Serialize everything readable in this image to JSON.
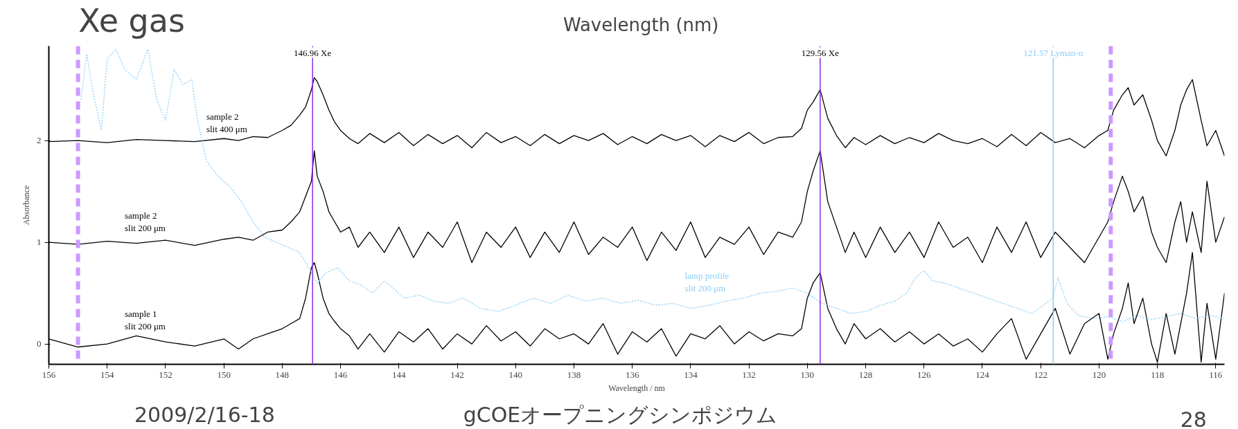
{
  "chart_data": {
    "type": "line",
    "title": "Xe gas",
    "xlabel": "Wavelength / nm",
    "ylabel": "Absorbance",
    "annotations": [
      "Wavelength (nm)",
      "2009/2/16-18",
      "gCOEオープニングシンポジウム",
      "28"
    ],
    "x": [
      156,
      155,
      154,
      153,
      152,
      151,
      150,
      149.5,
      149,
      148.5,
      148,
      147.7,
      147.4,
      147.2,
      147,
      146.9,
      146.8,
      146.6,
      146.4,
      146.2,
      146,
      145.7,
      145.4,
      145,
      144.5,
      144,
      143.5,
      143,
      142.5,
      142,
      141.5,
      141,
      140.5,
      140,
      139.5,
      139,
      138.5,
      138,
      137.5,
      137,
      136.5,
      136,
      135.5,
      135,
      134.5,
      134,
      133.5,
      133,
      132.5,
      132,
      131.5,
      131,
      130.5,
      130.2,
      130,
      129.8,
      129.56,
      129.3,
      129,
      128.7,
      128.4,
      128,
      127.5,
      127,
      126.5,
      126,
      125.5,
      125,
      124.5,
      124,
      123.5,
      123,
      122.5,
      122,
      121.5,
      121,
      120.5,
      120,
      119.7,
      119.5,
      119.2,
      119,
      118.8,
      118.5,
      118.2,
      118,
      117.7,
      117.4,
      117.2,
      117,
      116.8,
      116.5,
      116.3,
      116,
      115.7
    ],
    "series": [
      {
        "name": "sample 2\nslit 400 μm",
        "color": "#000000",
        "values": [
          1.99,
          2.0,
          1.98,
          2.01,
          2.0,
          1.99,
          2.02,
          2.0,
          2.04,
          2.03,
          2.1,
          2.15,
          2.25,
          2.33,
          2.5,
          2.62,
          2.58,
          2.45,
          2.3,
          2.18,
          2.1,
          2.02,
          1.97,
          2.07,
          1.98,
          2.08,
          1.95,
          2.06,
          1.97,
          2.05,
          1.93,
          2.08,
          1.98,
          2.04,
          1.95,
          2.06,
          1.97,
          2.05,
          2.0,
          2.07,
          1.96,
          2.04,
          1.97,
          2.06,
          2.0,
          2.05,
          1.94,
          2.05,
          1.99,
          2.08,
          1.97,
          2.03,
          2.04,
          2.12,
          2.3,
          2.38,
          2.5,
          2.22,
          2.05,
          1.93,
          2.03,
          1.96,
          2.05,
          1.97,
          2.03,
          1.98,
          2.07,
          2.0,
          1.97,
          2.02,
          1.94,
          2.06,
          1.95,
          2.08,
          1.98,
          2.02,
          1.93,
          2.05,
          2.1,
          2.3,
          2.45,
          2.52,
          2.35,
          2.45,
          2.2,
          2.0,
          1.85,
          2.1,
          2.35,
          2.5,
          2.6,
          2.2,
          1.95,
          2.1,
          1.85
        ]
      },
      {
        "name": "sample 2\nslit 200 μm",
        "color": "#000000",
        "values": [
          1.0,
          0.98,
          1.01,
          0.99,
          1.02,
          0.97,
          1.03,
          1.05,
          1.02,
          1.1,
          1.12,
          1.2,
          1.3,
          1.45,
          1.6,
          1.9,
          1.65,
          1.5,
          1.3,
          1.2,
          1.1,
          1.15,
          0.95,
          1.1,
          0.9,
          1.15,
          0.85,
          1.1,
          0.95,
          1.2,
          0.8,
          1.1,
          0.95,
          1.15,
          0.85,
          1.1,
          0.9,
          1.2,
          0.88,
          1.05,
          0.95,
          1.15,
          0.82,
          1.1,
          0.92,
          1.2,
          0.85,
          1.05,
          0.98,
          1.15,
          0.88,
          1.1,
          1.05,
          1.2,
          1.5,
          1.7,
          1.9,
          1.4,
          1.15,
          0.9,
          1.1,
          0.85,
          1.15,
          0.9,
          1.1,
          0.85,
          1.2,
          0.95,
          1.05,
          0.8,
          1.15,
          0.9,
          1.2,
          0.85,
          1.1,
          0.95,
          0.8,
          1.05,
          1.2,
          1.4,
          1.65,
          1.5,
          1.3,
          1.45,
          1.1,
          0.95,
          0.8,
          1.2,
          1.4,
          1.0,
          1.3,
          0.9,
          1.6,
          1.0,
          1.25
        ]
      },
      {
        "name": "sample 1\nslit 200 μm",
        "color": "#000000",
        "values": [
          0.05,
          -0.03,
          0.0,
          0.08,
          0.02,
          -0.02,
          0.05,
          -0.05,
          0.05,
          0.1,
          0.15,
          0.2,
          0.25,
          0.45,
          0.75,
          0.8,
          0.7,
          0.45,
          0.3,
          0.22,
          0.15,
          0.08,
          -0.05,
          0.1,
          -0.08,
          0.12,
          0.02,
          0.15,
          -0.05,
          0.1,
          0.0,
          0.18,
          0.03,
          0.12,
          -0.02,
          0.15,
          0.05,
          0.1,
          0.0,
          0.2,
          -0.1,
          0.12,
          0.02,
          0.15,
          -0.12,
          0.1,
          0.05,
          0.18,
          0.0,
          0.12,
          0.03,
          0.1,
          0.08,
          0.15,
          0.45,
          0.6,
          0.7,
          0.35,
          0.15,
          0.0,
          0.2,
          0.05,
          0.15,
          0.02,
          0.12,
          0.0,
          0.1,
          -0.02,
          0.05,
          -0.08,
          0.1,
          0.25,
          -0.15,
          0.1,
          0.35,
          -0.1,
          0.2,
          0.3,
          -0.15,
          0.1,
          0.35,
          0.6,
          0.2,
          0.45,
          0.0,
          -0.18,
          0.3,
          -0.1,
          0.2,
          0.5,
          0.9,
          -0.18,
          0.4,
          -0.15,
          0.5
        ]
      },
      {
        "name": "lamp profile\nslit 200 μm",
        "color": "#87cefa",
        "line_style": "dotted",
        "x": [
          154.9,
          154.7,
          154.5,
          154.2,
          154,
          153.7,
          153.4,
          153,
          152.6,
          152.3,
          152,
          151.7,
          151.4,
          151.1,
          150.9,
          150.6,
          150.2,
          149.8,
          149.4,
          149,
          148.6,
          148.2,
          147.8,
          147.4,
          147.1,
          146.8,
          146.5,
          146.1,
          145.7,
          145.3,
          144.9,
          144.5,
          144.2,
          143.8,
          143.3,
          142.8,
          142.3,
          141.8,
          141.2,
          140.6,
          140,
          139.4,
          138.8,
          138.2,
          137.6,
          137,
          136.4,
          135.8,
          135.2,
          134.6,
          134,
          133.4,
          132.8,
          132.2,
          131.6,
          131,
          130.5,
          130,
          129.5,
          129,
          128.5,
          128,
          127.5,
          127,
          126.6,
          126.3,
          126,
          125.7,
          125.3,
          124.8,
          124.3,
          123.8,
          123.3,
          122.8,
          122.3,
          121.9,
          121.6,
          121.4,
          121.1,
          120.7,
          120.2,
          119.7,
          119.2,
          118.7,
          118.2,
          117.7,
          117.2,
          116.7,
          116.2,
          115.7
        ],
        "values": [
          2.4,
          2.85,
          2.5,
          2.1,
          2.8,
          2.9,
          2.7,
          2.6,
          2.9,
          2.4,
          2.2,
          2.7,
          2.55,
          2.6,
          2.2,
          1.8,
          1.65,
          1.55,
          1.4,
          1.2,
          1.05,
          1.0,
          0.95,
          0.9,
          0.75,
          0.6,
          0.7,
          0.75,
          0.62,
          0.58,
          0.5,
          0.62,
          0.55,
          0.45,
          0.48,
          0.42,
          0.4,
          0.45,
          0.35,
          0.32,
          0.38,
          0.45,
          0.4,
          0.48,
          0.42,
          0.45,
          0.4,
          0.43,
          0.38,
          0.4,
          0.35,
          0.38,
          0.42,
          0.45,
          0.5,
          0.52,
          0.55,
          0.5,
          0.4,
          0.35,
          0.3,
          0.32,
          0.38,
          0.42,
          0.5,
          0.65,
          0.72,
          0.62,
          0.6,
          0.55,
          0.5,
          0.45,
          0.4,
          0.35,
          0.3,
          0.38,
          0.45,
          0.65,
          0.4,
          0.28,
          0.25,
          0.27,
          0.22,
          0.28,
          0.24,
          0.27,
          0.3,
          0.25,
          0.28,
          0.25
        ]
      }
    ],
    "ref_lines": [
      {
        "axis": "x",
        "value": 146.96,
        "label": "146.96 Xe",
        "color": "#8a2be2"
      },
      {
        "axis": "x",
        "value": 129.56,
        "label": "129.56 Xe",
        "color": "#8a2be2"
      },
      {
        "axis": "x",
        "value": 121.57,
        "label": "121.57 Lyman-α",
        "color": "#87cefa"
      },
      {
        "axis": "x",
        "value": 155,
        "label": null,
        "color": "#cc99ff",
        "line_style": "dashed"
      },
      {
        "axis": "x",
        "value": 119.6,
        "label": null,
        "color": "#cc99ff",
        "line_style": "dashed"
      }
    ],
    "xlim": [
      156,
      115.7
    ],
    "xticks": [
      156,
      154,
      152,
      150,
      148,
      146,
      144,
      142,
      140,
      138,
      136,
      134,
      132,
      130,
      128,
      126,
      124,
      122,
      120,
      118,
      116
    ],
    "ylim": [
      -0.2,
      2.93
    ],
    "yticks": [
      0,
      1,
      2
    ],
    "grid": false
  }
}
